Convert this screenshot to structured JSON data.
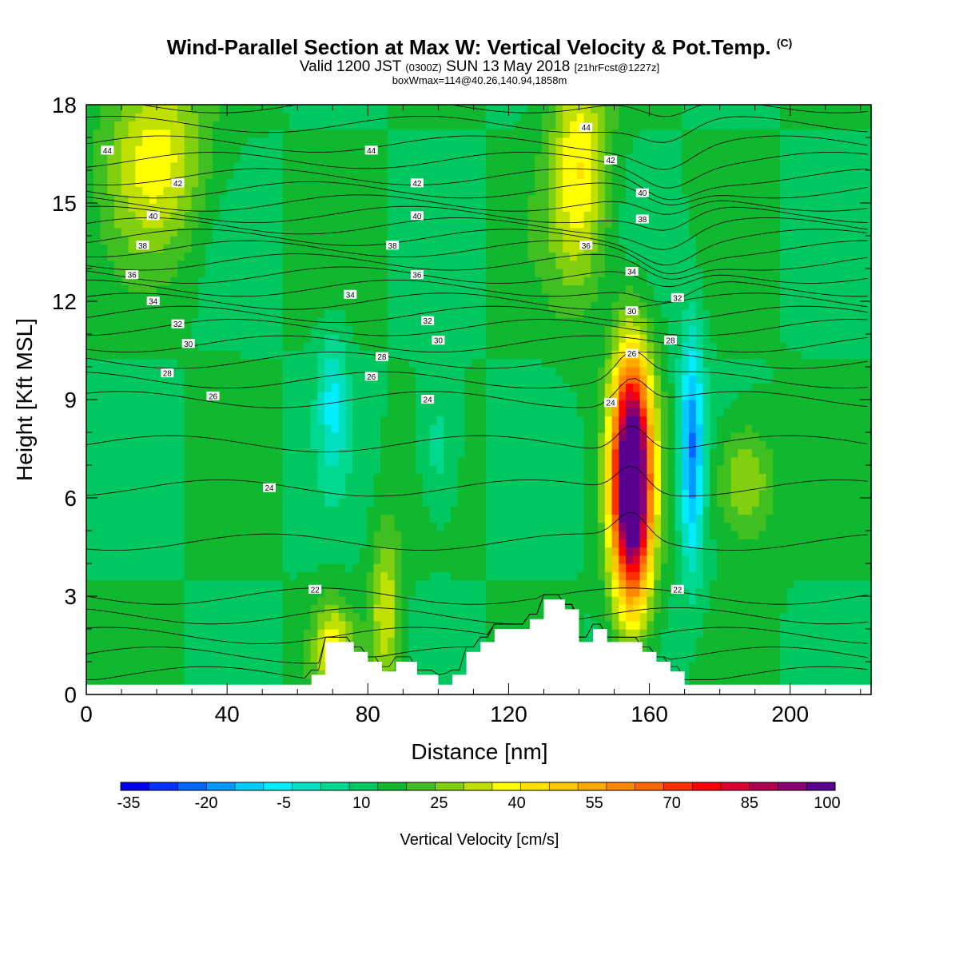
{
  "header": {
    "title": "Wind-Parallel Section at Max W: Vertical Velocity & Pot.Temp.",
    "copyright_mark": "(C)",
    "valid_prefix": "Valid 1200 JST",
    "valid_utc": "(0300Z)",
    "valid_date": "SUN 13 May 2018",
    "forecast_info": "[21hrFcst@1227z]",
    "boxwmax": "boxWmax=114@40.26,140.94,1858m"
  },
  "chart_data": {
    "type": "heatmap",
    "title": "Wind-Parallel Section at Max W: Vertical Velocity & Pot.Temp.",
    "xlabel": "Distance [nm]",
    "ylabel": "Height [Kft MSL]",
    "xlim": [
      0,
      223
    ],
    "ylim": [
      0,
      18
    ],
    "x_ticks": [
      0,
      40,
      80,
      120,
      160,
      200
    ],
    "y_ticks": [
      0,
      3,
      6,
      9,
      12,
      15,
      18
    ],
    "colorbar": {
      "label": "Vertical Velocity [cm/s]",
      "min": -35,
      "max": 100,
      "step": 5,
      "tick_labels": [
        "-35",
        "-20",
        "-5",
        "10",
        "25",
        "40",
        "55",
        "70",
        "85",
        "100"
      ],
      "colors": [
        "#0000ee",
        "#0033ff",
        "#0066ff",
        "#0099ff",
        "#00ccff",
        "#00eeff",
        "#00e0c0",
        "#00d890",
        "#00c860",
        "#10b830",
        "#40c020",
        "#80d010",
        "#c0e000",
        "#ffff00",
        "#ffe000",
        "#ffc800",
        "#ffa800",
        "#ff8800",
        "#ff6600",
        "#ff3000",
        "#ff0000",
        "#dd0030",
        "#b00050",
        "#8a0070",
        "#5a0090"
      ]
    },
    "w_features": [
      {
        "x": 155,
        "y": 6.5,
        "peak": 100,
        "sx": 4,
        "sy": 2.6
      },
      {
        "x": 172,
        "y": 7.5,
        "peak": -30,
        "sx": 2.5,
        "sy": 2.5
      },
      {
        "x": 70,
        "y": 9,
        "peak": -15,
        "sx": 3,
        "sy": 1.5
      },
      {
        "x": 100,
        "y": 7.5,
        "peak": -10,
        "sx": 4,
        "sy": 1.5
      },
      {
        "x": 187,
        "y": 6.5,
        "peak": 18,
        "sx": 6,
        "sy": 1.3
      },
      {
        "x": 140,
        "y": 16,
        "peak": 25,
        "sx": 6,
        "sy": 2.5
      },
      {
        "x": 85,
        "y": 2.5,
        "peak": 20,
        "sx": 3,
        "sy": 1.8
      },
      {
        "x": 20,
        "y": 16.5,
        "peak": 22,
        "sx": 10,
        "sy": 2
      },
      {
        "x": 70,
        "y": 1.5,
        "peak": 20,
        "sx": 4,
        "sy": 1
      }
    ],
    "terrain": {
      "x": [
        0,
        64,
        64,
        68,
        68,
        76,
        76,
        80,
        80,
        84,
        84,
        88,
        88,
        94,
        94,
        100,
        100,
        104,
        104,
        108,
        108,
        112,
        112,
        116,
        116,
        126,
        126,
        130,
        130,
        136,
        136,
        140,
        140,
        144,
        144,
        148,
        148,
        158,
        158,
        162,
        162,
        166,
        166,
        170,
        170,
        174,
        174,
        176,
        176,
        223
      ],
      "y": [
        0.3,
        0.3,
        0.6,
        0.6,
        1.6,
        1.6,
        1.3,
        1.3,
        1.0,
        1.0,
        0.7,
        0.7,
        1.0,
        1.0,
        0.6,
        0.6,
        0.3,
        0.3,
        0.6,
        0.6,
        1.3,
        1.3,
        1.6,
        1.6,
        2.0,
        2.0,
        2.3,
        2.3,
        2.9,
        2.9,
        2.6,
        2.6,
        1.6,
        1.6,
        2.0,
        2.0,
        1.6,
        1.6,
        1.3,
        1.3,
        1.0,
        1.0,
        0.7,
        0.7,
        0.3,
        0.3,
        0.3,
        0.3,
        0.3,
        0.3
      ]
    },
    "theta_contours": {
      "interval": 1,
      "lines": [
        {
          "theta": 22,
          "y": 3.0
        },
        {
          "theta": 24,
          "y": 6.3
        },
        {
          "theta": 26,
          "y": 9.0
        },
        {
          "theta": 28,
          "y": 10.2
        },
        {
          "theta": 30,
          "y": 11.2
        },
        {
          "theta": 32,
          "y": 12.0
        },
        {
          "theta": 34,
          "y": 12.8
        },
        {
          "theta": 36,
          "y": 13.6
        },
        {
          "theta": 38,
          "y": 14.3
        },
        {
          "theta": 40,
          "y": 15.0
        },
        {
          "theta": 42,
          "y": 15.8
        },
        {
          "theta": 44,
          "y": 16.8
        }
      ],
      "labels": [
        {
          "text": "44",
          "x": 6,
          "y": 16.6
        },
        {
          "text": "42",
          "x": 26,
          "y": 15.6
        },
        {
          "text": "40",
          "x": 19,
          "y": 14.6
        },
        {
          "text": "38",
          "x": 16,
          "y": 13.7
        },
        {
          "text": "36",
          "x": 13,
          "y": 12.8
        },
        {
          "text": "34",
          "x": 19,
          "y": 12.0
        },
        {
          "text": "32",
          "x": 26,
          "y": 11.3
        },
        {
          "text": "30",
          "x": 29,
          "y": 10.7
        },
        {
          "text": "28",
          "x": 23,
          "y": 9.8
        },
        {
          "text": "26",
          "x": 36,
          "y": 9.1
        },
        {
          "text": "24",
          "x": 52,
          "y": 6.3
        },
        {
          "text": "22",
          "x": 65,
          "y": 3.2
        },
        {
          "text": "44",
          "x": 81,
          "y": 16.6
        },
        {
          "text": "42",
          "x": 94,
          "y": 15.6
        },
        {
          "text": "40",
          "x": 94,
          "y": 14.6
        },
        {
          "text": "38",
          "x": 87,
          "y": 13.7
        },
        {
          "text": "36",
          "x": 94,
          "y": 12.8
        },
        {
          "text": "34",
          "x": 75,
          "y": 12.2
        },
        {
          "text": "32",
          "x": 97,
          "y": 11.4
        },
        {
          "text": "30",
          "x": 100,
          "y": 10.8
        },
        {
          "text": "28",
          "x": 84,
          "y": 10.3
        },
        {
          "text": "26",
          "x": 81,
          "y": 9.7
        },
        {
          "text": "24",
          "x": 97,
          "y": 9.0
        },
        {
          "text": "44",
          "x": 142,
          "y": 17.3
        },
        {
          "text": "42",
          "x": 149,
          "y": 16.3
        },
        {
          "text": "40",
          "x": 158,
          "y": 15.3
        },
        {
          "text": "38",
          "x": 158,
          "y": 14.5
        },
        {
          "text": "36",
          "x": 142,
          "y": 13.7
        },
        {
          "text": "34",
          "x": 155,
          "y": 12.9
        },
        {
          "text": "32",
          "x": 168,
          "y": 12.1
        },
        {
          "text": "30",
          "x": 155,
          "y": 11.7
        },
        {
          "text": "28",
          "x": 166,
          "y": 10.8
        },
        {
          "text": "26",
          "x": 155,
          "y": 10.4
        },
        {
          "text": "24",
          "x": 149,
          "y": 8.9
        },
        {
          "text": "22",
          "x": 168,
          "y": 3.2
        }
      ]
    }
  }
}
